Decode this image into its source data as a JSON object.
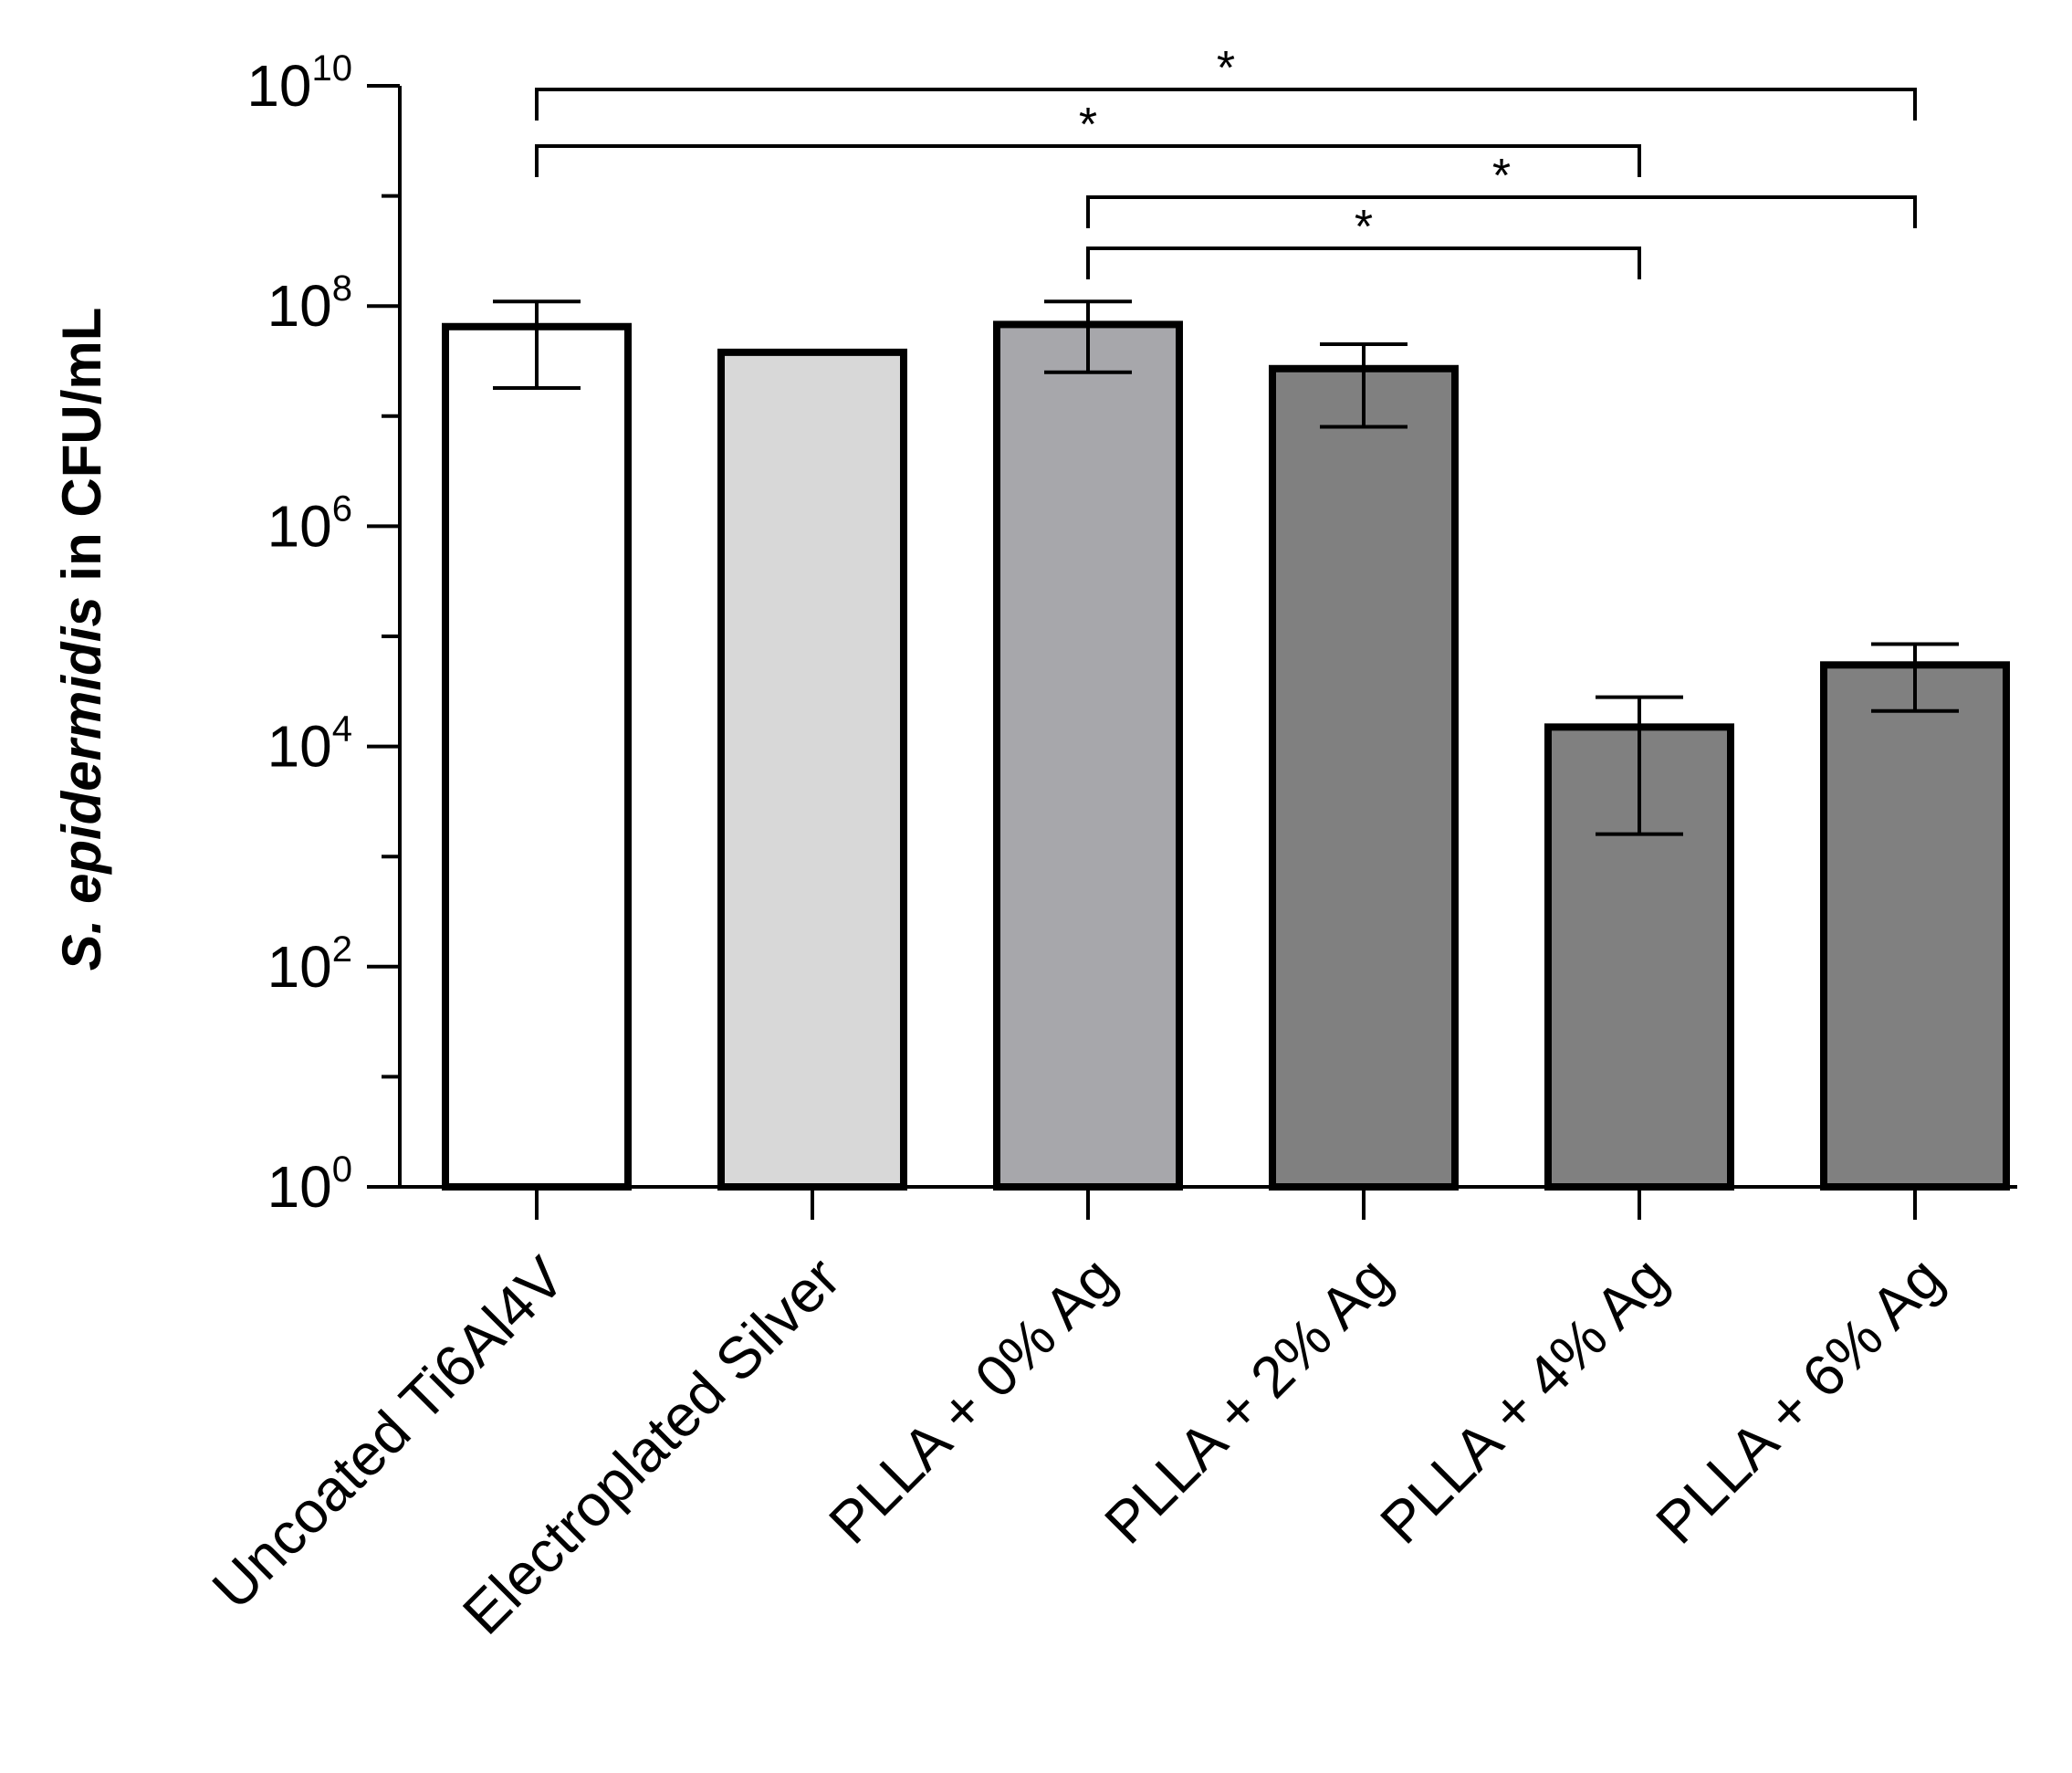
{
  "chart_data": {
    "type": "bar",
    "yscale": "log10",
    "ylabel_prefix": "S. epidermidis",
    "ylabel_suffix": " in CFU/mL",
    "ylim_exponents": [
      0,
      10
    ],
    "yticks": [
      {
        "base": "10",
        "exp": "0",
        "value": 1
      },
      {
        "base": "10",
        "exp": "2",
        "value": 100
      },
      {
        "base": "10",
        "exp": "4",
        "value": 10000
      },
      {
        "base": "10",
        "exp": "6",
        "value": 1000000
      },
      {
        "base": "10",
        "exp": "8",
        "value": 100000000
      },
      {
        "base": "10",
        "exp": "10",
        "value": 10000000000
      }
    ],
    "categories": [
      "Uncoated Ti6Al4V",
      "Electroplated Silver",
      "PLLA + 0% Ag",
      "PLLA + 2% Ag",
      "PLLA + 4% Ag",
      "PLLA + 6% Ag"
    ],
    "values": [
      65000000,
      38000000,
      68000000,
      27000000,
      15000,
      55000
    ],
    "error_low": [
      18000000,
      null,
      25000000,
      8000000,
      1600,
      21000
    ],
    "error_high": [
      110000000,
      null,
      110000000,
      45000000,
      28000,
      85000
    ],
    "bar_colors": [
      "#ffffff",
      "#d8d8d8",
      "#a7a7ab",
      "#808080",
      "#808080",
      "#808080"
    ],
    "significance": [
      {
        "from": 0,
        "to": 5,
        "label": "*"
      },
      {
        "from": 0,
        "to": 4,
        "label": "*"
      },
      {
        "from": 2,
        "to": 5,
        "label": "*"
      },
      {
        "from": 2,
        "to": 4,
        "label": "*"
      }
    ]
  }
}
